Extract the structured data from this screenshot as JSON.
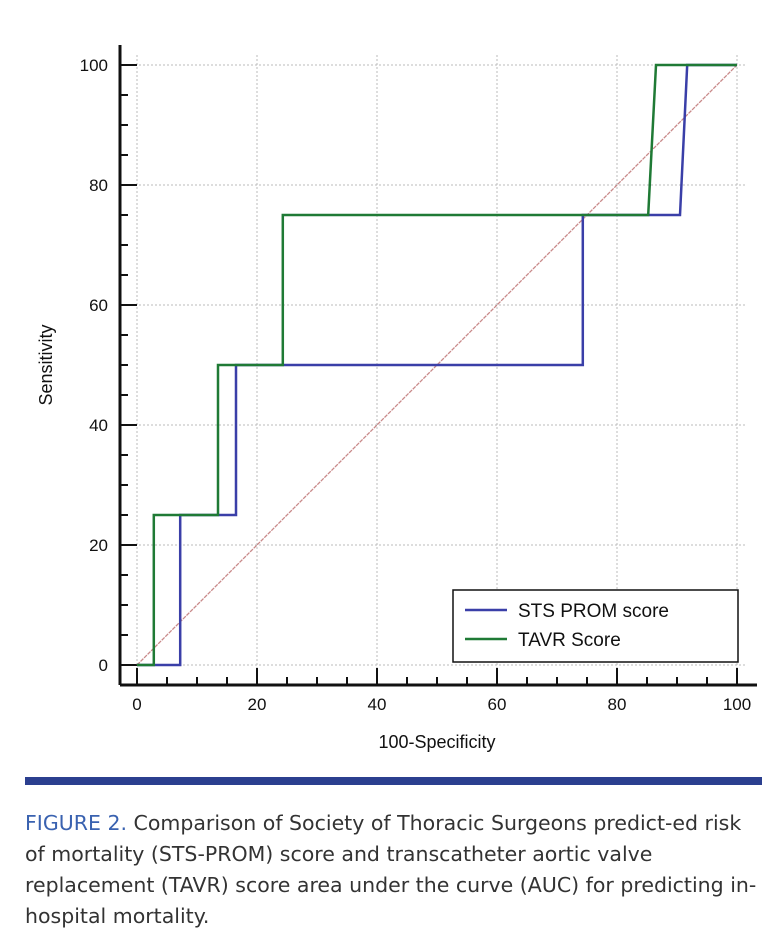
{
  "chart_data": {
    "type": "line",
    "xlabel": "100-Specificity",
    "ylabel": "Sensitivity",
    "xlim": [
      0,
      100
    ],
    "ylim": [
      0,
      100
    ],
    "xticks": [
      0,
      20,
      40,
      60,
      80,
      100
    ],
    "yticks": [
      0,
      20,
      40,
      60,
      80,
      100
    ],
    "grid": true,
    "legend_position": "bottom-right",
    "series": [
      {
        "name": "STS PROM score",
        "color": "#3a3fa8",
        "points": [
          [
            0,
            0
          ],
          [
            7.2,
            0
          ],
          [
            7.2,
            25
          ],
          [
            16.5,
            25
          ],
          [
            16.5,
            50
          ],
          [
            74.3,
            50
          ],
          [
            74.3,
            75
          ],
          [
            90.5,
            75
          ],
          [
            91.7,
            100
          ],
          [
            100,
            100
          ]
        ]
      },
      {
        "name": "TAVR Score",
        "color": "#1f7a35",
        "points": [
          [
            0,
            0
          ],
          [
            2.8,
            0
          ],
          [
            2.8,
            25
          ],
          [
            13.5,
            25
          ],
          [
            13.5,
            50
          ],
          [
            24.3,
            50
          ],
          [
            24.3,
            75
          ],
          [
            85.2,
            75
          ],
          [
            86.5,
            100
          ],
          [
            100,
            100
          ]
        ]
      }
    ],
    "reference_line": {
      "color": "#c98a8a",
      "points": [
        [
          0,
          0
        ],
        [
          100,
          100
        ]
      ]
    }
  },
  "caption": {
    "label": "FIGURE 2.",
    "text": " Comparison of Society of Thoracic Surgeons predict-ed risk of mortality (STS-PROM) score and transcatheter aortic valve replacement (TAVR) score area under the curve (AUC) for predicting in-hospital mortality."
  }
}
